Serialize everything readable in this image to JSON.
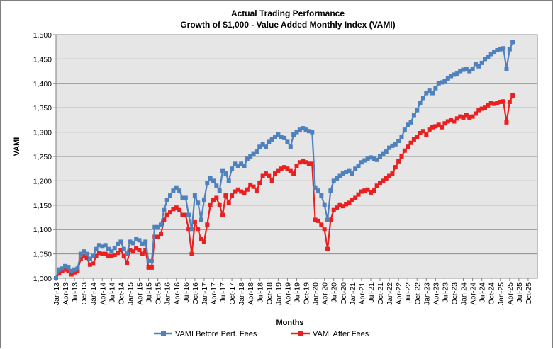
{
  "chart_data": {
    "type": "line",
    "title": "Actual Trading Performance",
    "subtitle": "Growth of $1,000 - Value Added Monthly Index (VAMI)",
    "xlabel": "Months",
    "ylabel": "VAMI",
    "ylim": [
      1000,
      1500
    ],
    "yticks": [
      1000,
      1050,
      1100,
      1150,
      1200,
      1250,
      1300,
      1350,
      1400,
      1450,
      1500
    ],
    "ytick_labels": [
      "1,000",
      "1,050",
      "1,100",
      "1,150",
      "1,200",
      "1,250",
      "1,300",
      "1,350",
      "1,400",
      "1,450",
      "1,500"
    ],
    "x_tick_labels": [
      "Jan-13",
      "Apr-13",
      "Jul-13",
      "Oct-13",
      "Jan-14",
      "Apr-14",
      "Jul-14",
      "Oct-14",
      "Jan-15",
      "Apr-15",
      "Jul-15",
      "Oct-15",
      "Jan-16",
      "Apr-16",
      "Jul-16",
      "Oct-16",
      "Jan-17",
      "Apr-17",
      "Jul-17",
      "Oct-17",
      "Jan-18",
      "Apr-18",
      "Jul-18",
      "Oct-18",
      "Jan-19",
      "Apr-19",
      "Jul-19",
      "Oct-19",
      "Jan-20",
      "Apr-20",
      "Jul-20",
      "Oct-20",
      "Jan-21",
      "Apr-21",
      "Jul-21",
      "Oct-21",
      "Jan-22",
      "Apr-22",
      "Jul-22",
      "Oct-22",
      "Jan-23",
      "Apr-23",
      "Jul-23",
      "Oct-23",
      "Jan-24",
      "Apr-24",
      "Jul-24",
      "Oct-24",
      "Jan-25",
      "Apr-25",
      "Jul-25",
      "Oct-25"
    ],
    "grid": "horizontal",
    "legend": "bottom",
    "series": [
      {
        "name": "VAMI Before Perf. Fees",
        "color": "#4f81bd",
        "values": [
          1000,
          1018,
          1020,
          1025,
          1022,
          1015,
          1018,
          1020,
          1050,
          1055,
          1050,
          1040,
          1045,
          1060,
          1068,
          1065,
          1068,
          1060,
          1055,
          1062,
          1070,
          1075,
          1060,
          1050,
          1075,
          1072,
          1080,
          1078,
          1070,
          1075,
          1035,
          1035,
          1105,
          1105,
          1110,
          1140,
          1160,
          1170,
          1180,
          1185,
          1180,
          1165,
          1165,
          1130,
          1100,
          1170,
          1155,
          1120,
          1160,
          1195,
          1205,
          1200,
          1190,
          1180,
          1220,
          1215,
          1200,
          1225,
          1235,
          1230,
          1235,
          1230,
          1245,
          1250,
          1255,
          1260,
          1270,
          1275,
          1270,
          1280,
          1285,
          1290,
          1295,
          1290,
          1288,
          1280,
          1270,
          1295,
          1300,
          1305,
          1308,
          1305,
          1302,
          1300,
          1185,
          1180,
          1170,
          1150,
          1120,
          1180,
          1200,
          1205,
          1210,
          1215,
          1218,
          1220,
          1215,
          1225,
          1230,
          1238,
          1242,
          1245,
          1248,
          1245,
          1243,
          1250,
          1255,
          1260,
          1268,
          1272,
          1275,
          1282,
          1290,
          1305,
          1315,
          1320,
          1335,
          1345,
          1360,
          1370,
          1380,
          1385,
          1380,
          1390,
          1400,
          1402,
          1405,
          1410,
          1415,
          1418,
          1420,
          1425,
          1428,
          1430,
          1425,
          1430,
          1440,
          1435,
          1442,
          1450,
          1455,
          1460,
          1465,
          1468,
          1470,
          1472,
          1430,
          1470,
          1485
        ]
      },
      {
        "name": "VAMI After Fees",
        "color": "#e8201f",
        "values": [
          1000,
          1010,
          1015,
          1018,
          1015,
          1008,
          1012,
          1015,
          1040,
          1045,
          1042,
          1028,
          1030,
          1045,
          1052,
          1050,
          1050,
          1045,
          1045,
          1048,
          1052,
          1058,
          1045,
          1032,
          1058,
          1055,
          1062,
          1058,
          1050,
          1058,
          1022,
          1022,
          1085,
          1085,
          1090,
          1120,
          1130,
          1135,
          1142,
          1145,
          1140,
          1130,
          1130,
          1100,
          1050,
          1115,
          1100,
          1080,
          1075,
          1110,
          1150,
          1160,
          1165,
          1150,
          1130,
          1170,
          1155,
          1170,
          1178,
          1182,
          1178,
          1175,
          1182,
          1192,
          1188,
          1180,
          1195,
          1210,
          1215,
          1210,
          1200,
          1215,
          1220,
          1225,
          1228,
          1225,
          1220,
          1215,
          1230,
          1238,
          1240,
          1238,
          1235,
          1235,
          1120,
          1118,
          1110,
          1100,
          1060,
          1120,
          1140,
          1145,
          1150,
          1148,
          1152,
          1155,
          1160,
          1165,
          1172,
          1178,
          1180,
          1182,
          1176,
          1180,
          1190,
          1195,
          1200,
          1205,
          1210,
          1215,
          1228,
          1240,
          1250,
          1262,
          1270,
          1278,
          1285,
          1290,
          1298,
          1302,
          1295,
          1305,
          1310,
          1312,
          1315,
          1310,
          1318,
          1322,
          1325,
          1322,
          1328,
          1332,
          1330,
          1335,
          1330,
          1332,
          1338,
          1345,
          1348,
          1350,
          1355,
          1360,
          1358,
          1360,
          1362,
          1363,
          1320,
          1362,
          1375
        ]
      }
    ]
  }
}
